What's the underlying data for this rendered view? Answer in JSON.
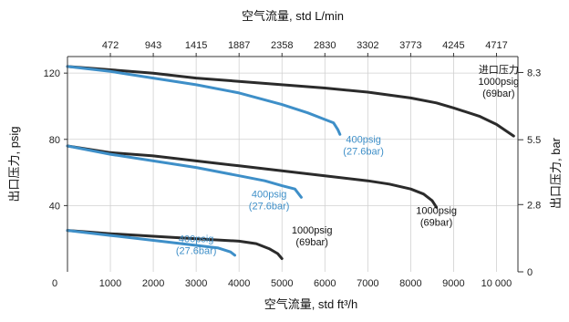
{
  "chart_data": {
    "type": "line",
    "top_axis": {
      "label": "空气流量, std L/min",
      "ticks": [
        "472",
        "943",
        "1415",
        "1887",
        "2358",
        "2830",
        "3302",
        "3773",
        "4245",
        "4717"
      ],
      "tick_positions_bottom_units": [
        1000,
        2000,
        3000,
        4000,
        5000,
        6000,
        7000,
        8000,
        9000,
        10000
      ]
    },
    "x_axis": {
      "label": "空气流量, std ft³/h",
      "range": [
        0,
        10500
      ],
      "ticks": [
        {
          "value": 0,
          "label": "0"
        },
        {
          "value": 1000,
          "label": "1000"
        },
        {
          "value": 2000,
          "label": "2000"
        },
        {
          "value": 3000,
          "label": "3000"
        },
        {
          "value": 4000,
          "label": "4000"
        },
        {
          "value": 5000,
          "label": "5000"
        },
        {
          "value": 6000,
          "label": "6000"
        },
        {
          "value": 7000,
          "label": "7000"
        },
        {
          "value": 8000,
          "label": "8000"
        },
        {
          "value": 9000,
          "label": "9000"
        },
        {
          "value": 10000,
          "label": "10 000"
        }
      ]
    },
    "y_axis_left": {
      "label": "出口压力, psig",
      "range": [
        0,
        130
      ],
      "ticks": [
        {
          "value": 40,
          "label": "40"
        },
        {
          "value": 80,
          "label": "80"
        },
        {
          "value": 120,
          "label": "120"
        }
      ]
    },
    "y_axis_right": {
      "label": "出口压力, bar",
      "ticks": [
        {
          "value": 0,
          "label": "0"
        },
        {
          "value": 2.8,
          "label": "2.8"
        },
        {
          "value": 5.5,
          "label": "5.5"
        },
        {
          "value": 8.3,
          "label": "8.3"
        }
      ]
    },
    "grid": true,
    "series": [
      {
        "group": "1000psig (69bar)",
        "color": "#2b2b2b",
        "x": [
          0,
          1000,
          2000,
          3000,
          4000,
          5000,
          6000,
          7000,
          8000,
          8600,
          9000,
          9600,
          10000,
          10400
        ],
        "y": [
          124,
          122,
          120,
          117,
          115,
          113,
          111,
          108.5,
          105,
          102,
          99,
          94,
          89,
          82
        ]
      },
      {
        "group": "400psig (27.6bar)",
        "color": "#3e8fc8",
        "x": [
          0,
          1000,
          2000,
          3000,
          4000,
          5000,
          5600,
          6000,
          6200,
          6300,
          6350
        ],
        "y": [
          124,
          121,
          117,
          113,
          108,
          101,
          96,
          92,
          90,
          86,
          83
        ]
      },
      {
        "group": "1000psig (69bar)",
        "color": "#2b2b2b",
        "x": [
          0,
          1000,
          2000,
          3000,
          4000,
          5000,
          6000,
          7000,
          7500,
          8000,
          8300,
          8500,
          8600
        ],
        "y": [
          76,
          72,
          70,
          67,
          64,
          61,
          58,
          55,
          53,
          50,
          47,
          43,
          39
        ]
      },
      {
        "group": "400psig (27.6bar)",
        "color": "#3e8fc8",
        "x": [
          0,
          1000,
          2000,
          3000,
          4000,
          4600,
          5000,
          5300,
          5450
        ],
        "y": [
          76,
          71,
          67,
          63,
          58,
          55,
          52,
          50,
          45
        ]
      },
      {
        "group": "1000psig (69bar)",
        "color": "#2b2b2b",
        "x": [
          0,
          500,
          1000,
          2000,
          3000,
          4000,
          4400,
          4700,
          4900,
          5000
        ],
        "y": [
          25,
          24,
          23,
          21.5,
          20,
          18.5,
          17,
          14,
          11,
          8
        ]
      },
      {
        "group": "400psig (27.6bar)",
        "color": "#3e8fc8",
        "x": [
          0,
          1000,
          2000,
          3000,
          3500,
          3800,
          3900
        ],
        "y": [
          25,
          22,
          19,
          16,
          14.5,
          12,
          10
        ]
      }
    ],
    "annotations": [
      {
        "lines": [
          "进口压力",
          "1000psig",
          "(69bar)"
        ],
        "color": "#111111",
        "x": 10050,
        "y": 120
      },
      {
        "lines": [
          "400psig",
          "(27.6bar)"
        ],
        "color": "#3e8fc8",
        "x": 6900,
        "y": 78
      },
      {
        "lines": [
          "400psig",
          "(27.6bar)"
        ],
        "color": "#3e8fc8",
        "x": 4700,
        "y": 45
      },
      {
        "lines": [
          "1000psig",
          "(69bar)"
        ],
        "color": "#111111",
        "x": 8600,
        "y": 35
      },
      {
        "lines": [
          "400psig",
          "(27.6bar)"
        ],
        "color": "#3e8fc8",
        "x": 3000,
        "y": 18
      },
      {
        "lines": [
          "1000psig",
          "(69bar)"
        ],
        "color": "#111111",
        "x": 5700,
        "y": 23
      }
    ]
  }
}
